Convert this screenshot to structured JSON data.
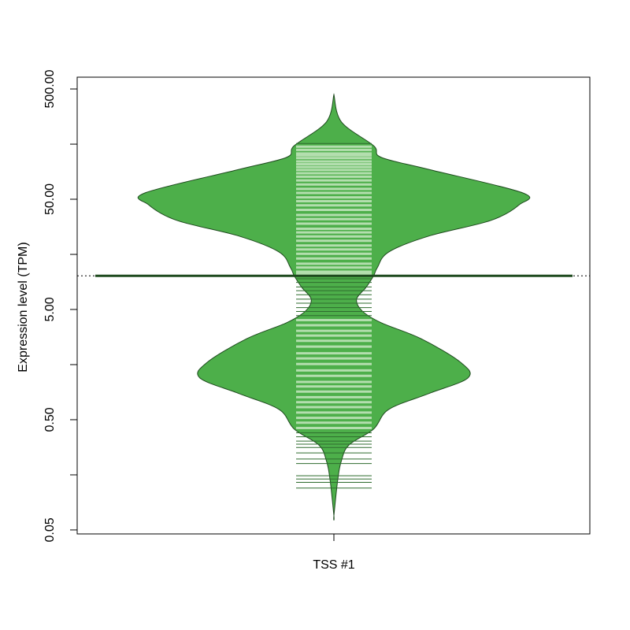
{
  "chart_data": {
    "type": "beanplot",
    "categories": [
      "TSS #1"
    ],
    "ylabel": "Expression level (TPM)",
    "log_y": true,
    "ylim": [
      0.046,
      640
    ],
    "yticks": [
      {
        "value": 0.05,
        "label": "0.05"
      },
      {
        "value": 0.5,
        "label": "0.50"
      },
      {
        "value": 5,
        "label": "5.00"
      },
      {
        "value": 50,
        "label": "50.00"
      },
      {
        "value": 500,
        "label": "500.00"
      }
    ],
    "yminor_ticks": [
      0.158,
      1.58,
      15.8,
      158
    ],
    "bean": {
      "y": [
        446,
        251,
        153,
        120,
        93.4,
        57.0,
        44.5,
        32.1,
        23.1,
        16.6,
        12.0,
        10.1,
        7.93,
        6.19,
        4.84,
        3.79,
        2.72,
        1.66,
        1.2,
        0.861,
        0.619,
        0.411,
        0.295,
        0.213,
        0.141,
        0.0673
      ],
      "density": [
        0,
        0.04,
        0.21,
        0.25,
        0.5,
        1.0,
        0.98,
        0.83,
        0.5,
        0.29,
        0.23,
        0.21,
        0.17,
        0.12,
        0.15,
        0.25,
        0.46,
        0.67,
        0.71,
        0.5,
        0.29,
        0.21,
        0.08,
        0.04,
        0.02,
        0
      ]
    },
    "rug": [
      160,
      150,
      140,
      130,
      125,
      118,
      110,
      104,
      98,
      92,
      86,
      80,
      74,
      68,
      62,
      57,
      52,
      48,
      44,
      40,
      36,
      33,
      30,
      27,
      25,
      23,
      21,
      19,
      17.5,
      16,
      14.5,
      13,
      12,
      11,
      10.5,
      9.5,
      8.8,
      8,
      7.4,
      6.8,
      6.2,
      5.7,
      5.2,
      4.8,
      4.4,
      4,
      3.6,
      3.2,
      2.9,
      2.6,
      2.3,
      2.0,
      1.8,
      1.6,
      1.4,
      1.25,
      1.1,
      1.0,
      0.9,
      0.8,
      0.72,
      0.65,
      0.58,
      0.52,
      0.47,
      0.42,
      0.38,
      0.35,
      0.32,
      0.3,
      0.28,
      0.25,
      0.22,
      0.2,
      0.155,
      0.145,
      0.135,
      0.12
    ],
    "median": 10.1,
    "overall_line": 10.1,
    "bean_color": "#4daf4a",
    "border_color": "#1e4a1e",
    "rug_inside_color": "#b3deae",
    "rug_outside_color": "#2e6b2e"
  }
}
